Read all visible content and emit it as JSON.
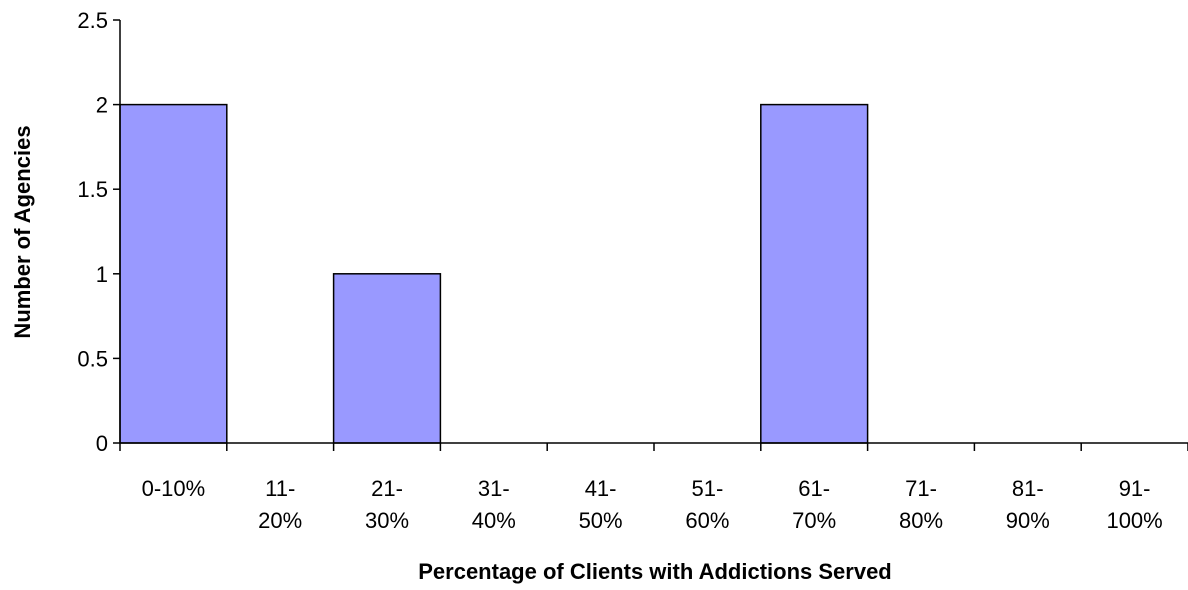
{
  "chart_data": {
    "type": "bar",
    "title": "",
    "xlabel": "Percentage of Clients with Addictions Served",
    "ylabel": "Number of Agencies",
    "categories": [
      [
        "0-10%"
      ],
      [
        "11-",
        "20%"
      ],
      [
        "21-",
        "30%"
      ],
      [
        "31-",
        "40%"
      ],
      [
        "41-",
        "50%"
      ],
      [
        "51-",
        "60%"
      ],
      [
        "61-",
        "70%"
      ],
      [
        "71-",
        "80%"
      ],
      [
        "81-",
        "90%"
      ],
      [
        "91-",
        "100%"
      ]
    ],
    "values": [
      2,
      0,
      1,
      0,
      0,
      0,
      2,
      0,
      0,
      0
    ],
    "ylim": [
      0,
      2.5
    ],
    "yticks": [
      "0",
      "0.5",
      "1",
      "1.5",
      "2",
      "2.5"
    ],
    "bar_color": "#9999ff",
    "bar_stroke": "#000000",
    "grid": false,
    "legend": "none"
  }
}
